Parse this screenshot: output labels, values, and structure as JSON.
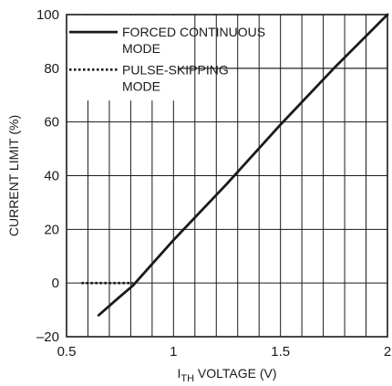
{
  "chart_data": {
    "type": "line",
    "title": "",
    "xlabel": {
      "base": "I",
      "subscript": "TH",
      "rest": " VOLTAGE (V)"
    },
    "ylabel": "CURRENT LIMIT (%)",
    "xlim": [
      0.5,
      2
    ],
    "ylim": [
      -20,
      100
    ],
    "xticks": [
      0.5,
      1,
      1.5,
      2
    ],
    "xtick_labels": [
      "0.5",
      "1",
      "1.5",
      "2"
    ],
    "yticks": [
      -20,
      0,
      20,
      40,
      60,
      80,
      100
    ],
    "ytick_labels": [
      "–20",
      "0",
      "20",
      "40",
      "60",
      "80",
      "100"
    ],
    "grid": true,
    "legend_position": "top-left",
    "series": [
      {
        "name": "FORCED CONTINUOUS MODE",
        "name_lines": [
          "FORCED CONTINUOUS",
          "MODE"
        ],
        "style": "solid",
        "x": [
          0.65,
          0.75,
          0.81,
          1.0,
          1.25,
          1.5,
          1.75,
          2.0
        ],
        "y": [
          -12,
          -5,
          -1,
          16,
          37,
          59,
          80,
          100
        ]
      },
      {
        "name": "PULSE-SKIPPING MODE",
        "name_lines": [
          "PULSE-SKIPPING",
          "MODE"
        ],
        "style": "dotted",
        "x": [
          0.57,
          0.81
        ],
        "y": [
          0,
          0
        ]
      }
    ]
  }
}
